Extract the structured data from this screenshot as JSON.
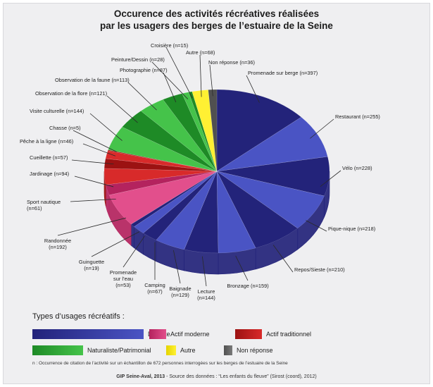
{
  "chart_data": {
    "type": "pie",
    "title_line1": "Occurence des activités récréatives réalisées",
    "title_line2": "par les usagers des berges de l’estuaire de la Seine",
    "slices": [
      {
        "label": "Promenade sur berge (n=397)",
        "value": 397,
        "group": "detente"
      },
      {
        "label": "Restaurant (n=255)",
        "value": 255,
        "group": "detente"
      },
      {
        "label": "Vélo (n=228)",
        "value": 228,
        "group": "detente"
      },
      {
        "label": "Pique-nique (n=218)",
        "value": 218,
        "group": "detente"
      },
      {
        "label": "Repos/Sieste (n=210)",
        "value": 210,
        "group": "detente"
      },
      {
        "label": "Bronzage (n=159)",
        "value": 159,
        "group": "detente"
      },
      {
        "label": "Lecture (n=144)",
        "value": 144,
        "group": "detente"
      },
      {
        "label": "Baignade (n=129)",
        "value": 129,
        "group": "detente"
      },
      {
        "label": "Camping (n=67)",
        "value": 67,
        "group": "detente"
      },
      {
        "label": "Promenade sur l’eau (n=53)",
        "value": 53,
        "group": "detente"
      },
      {
        "label": "Guinguette (n=19)",
        "value": 19,
        "group": "detente"
      },
      {
        "label": "Randonnée (n=192)",
        "value": 192,
        "group": "actif_moderne"
      },
      {
        "label": "Sport nautique (n=61)",
        "value": 61,
        "group": "actif_moderne"
      },
      {
        "label": "Jardinage (n=94)",
        "value": 94,
        "group": "actif_traditionnel"
      },
      {
        "label": "Cueillette (n=57)",
        "value": 57,
        "group": "actif_traditionnel"
      },
      {
        "label": "Pêche à la ligne (n=46)",
        "value": 46,
        "group": "actif_traditionnel"
      },
      {
        "label": "Chasse (n=5)",
        "value": 5,
        "group": "actif_traditionnel"
      },
      {
        "label": "Visite culturelle (n=144)",
        "value": 144,
        "group": "naturaliste"
      },
      {
        "label": "Observation de la flore (n=121)",
        "value": 121,
        "group": "naturaliste"
      },
      {
        "label": "Observation de la faune (n=113)",
        "value": 113,
        "group": "naturaliste"
      },
      {
        "label": "Photographie (n=87)",
        "value": 87,
        "group": "naturaliste"
      },
      {
        "label": "Peinture/Dessin (n=28)",
        "value": 28,
        "group": "naturaliste"
      },
      {
        "label": "Croisière (n=15)",
        "value": 15,
        "group": "naturaliste"
      },
      {
        "label": "Autre (n=68)",
        "value": 68,
        "group": "autre"
      },
      {
        "label": "Non réponse (n=36)",
        "value": 36,
        "group": "non_reponse"
      }
    ],
    "groups": {
      "detente": {
        "dark": "#23237a",
        "light": "#4a54c4"
      },
      "actif_moderne": {
        "dark": "#b4235e",
        "light": "#e24f8c"
      },
      "actif_traditionnel": {
        "dark": "#9c1212",
        "light": "#d82a2a"
      },
      "naturaliste": {
        "dark": "#1e8a26",
        "light": "#45c34a"
      },
      "autre": {
        "dark": "#e4d400",
        "light": "#fff033"
      },
      "non_reponse": {
        "dark": "#505050",
        "light": "#7a7a7a"
      }
    },
    "legend_placement": "bottom",
    "legend_title": "Types d’usages récréatifs :",
    "legend": [
      {
        "key": "detente",
        "label": "Détente"
      },
      {
        "key": "actif_moderne",
        "label": "Actif moderne"
      },
      {
        "key": "actif_traditionnel",
        "label": "Actif traditionnel"
      },
      {
        "key": "naturaliste",
        "label": "Naturaliste/Patrimonial"
      },
      {
        "key": "autre",
        "label": "Autre"
      },
      {
        "key": "non_reponse",
        "label": "Non réponse"
      }
    ],
    "footnote": "n : Occurrence de citation de l’activité sur un échantillon de 672 personnes interrogées sur les berges de l’estuaire de la Seine",
    "source_bold": "GIP Seine-Aval, 2013",
    "source_rest": " - Source des données : “Les enfants du fleuve” (Sirost (coord), 2012)"
  }
}
